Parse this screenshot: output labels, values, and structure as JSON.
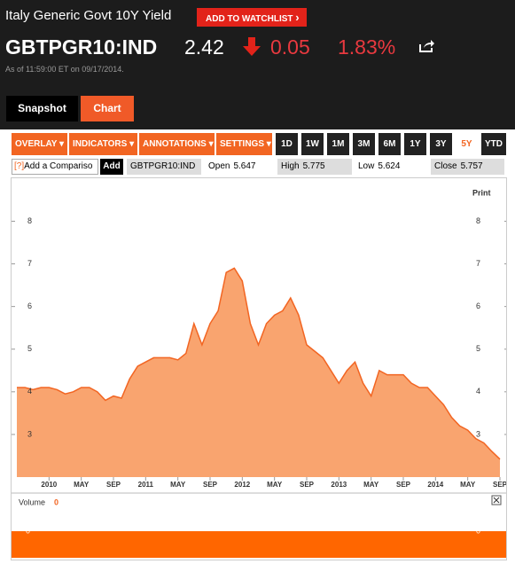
{
  "header": {
    "title": "Italy Generic Govt 10Y Yield",
    "watchlist_button": "ADD TO WATCHLIST",
    "ticker": "GBTPGR10:IND",
    "price": 2.42,
    "change": 0.05,
    "change_pct": "1.83%",
    "as_of": "As of 11:59:00 ET on 09/17/2014."
  },
  "tabs": [
    "Snapshot",
    "Chart"
  ],
  "toolbar": {
    "menus": [
      "OVERLAY",
      "INDICATORS",
      "ANNOTATIONS",
      "SETTINGS"
    ],
    "ranges": [
      "1D",
      "1W",
      "1M",
      "3M",
      "6M",
      "1Y",
      "3Y",
      "5Y",
      "YTD"
    ],
    "active_range": "5Y"
  },
  "quote_bar": {
    "compare_help": "[?]",
    "compare_placeholder": "Add a Compariso",
    "add_button": "Add",
    "symbol": "GBTPGR10:IND",
    "stats": [
      {
        "label": "Open",
        "value": 5.647
      },
      {
        "label": "High",
        "value": 5.775
      },
      {
        "label": "Low",
        "value": 5.624
      },
      {
        "label": "Close",
        "value": 5.757
      }
    ]
  },
  "print": "Print",
  "chart_data": {
    "type": "area",
    "color": "#f26522",
    "fill": "#f9a46f",
    "x": [
      "2009-09",
      "2009-10",
      "2009-11",
      "2009-12",
      "2010-01",
      "2010-02",
      "2010-03",
      "2010-04",
      "2010-05",
      "2010-06",
      "2010-07",
      "2010-08",
      "2010-09",
      "2010-10",
      "2010-11",
      "2010-12",
      "2011-01",
      "2011-02",
      "2011-03",
      "2011-04",
      "2011-05",
      "2011-06",
      "2011-07",
      "2011-08",
      "2011-09",
      "2011-10",
      "2011-11",
      "2011-12",
      "2012-01",
      "2012-02",
      "2012-03",
      "2012-04",
      "2012-05",
      "2012-06",
      "2012-07",
      "2012-08",
      "2012-09",
      "2012-10",
      "2012-11",
      "2012-12",
      "2013-01",
      "2013-02",
      "2013-03",
      "2013-04",
      "2013-05",
      "2013-06",
      "2013-07",
      "2013-08",
      "2013-09",
      "2013-10",
      "2013-11",
      "2013-12",
      "2014-01",
      "2014-02",
      "2014-03",
      "2014-04",
      "2014-05",
      "2014-06",
      "2014-07",
      "2014-08",
      "2014-09"
    ],
    "values": [
      4.1,
      4.1,
      4.05,
      4.1,
      4.1,
      4.05,
      3.95,
      4.0,
      4.1,
      4.1,
      4.0,
      3.8,
      3.9,
      3.85,
      4.3,
      4.6,
      4.7,
      4.8,
      4.8,
      4.8,
      4.75,
      4.9,
      5.6,
      5.1,
      5.6,
      5.9,
      6.8,
      6.9,
      6.6,
      5.6,
      5.1,
      5.6,
      5.8,
      5.9,
      6.2,
      5.8,
      5.1,
      4.95,
      4.8,
      4.5,
      4.2,
      4.5,
      4.7,
      4.2,
      3.9,
      4.5,
      4.4,
      4.4,
      4.4,
      4.2,
      4.1,
      4.1,
      3.9,
      3.7,
      3.4,
      3.2,
      3.1,
      2.9,
      2.8,
      2.6,
      2.42
    ],
    "xlim": [
      "2009-09",
      "2014-09"
    ],
    "xticks": [
      {
        "value": "2010-01",
        "label": "2010"
      },
      {
        "value": "2010-05",
        "label": "MAY"
      },
      {
        "value": "2010-09",
        "label": "SEP"
      },
      {
        "value": "2011-01",
        "label": "2011"
      },
      {
        "value": "2011-05",
        "label": "MAY"
      },
      {
        "value": "2011-09",
        "label": "SEP"
      },
      {
        "value": "2012-01",
        "label": "2012"
      },
      {
        "value": "2012-05",
        "label": "MAY"
      },
      {
        "value": "2012-09",
        "label": "SEP"
      },
      {
        "value": "2013-01",
        "label": "2013"
      },
      {
        "value": "2013-05",
        "label": "MAY"
      },
      {
        "value": "2013-09",
        "label": "SEP"
      },
      {
        "value": "2014-01",
        "label": "2014"
      },
      {
        "value": "2014-05",
        "label": "MAY"
      },
      {
        "value": "2014-09",
        "label": "SEP"
      }
    ],
    "ylim": [
      2,
      8.8
    ],
    "yticks": [
      3,
      4,
      5,
      6,
      7,
      8
    ],
    "volume": {
      "label": "Volume",
      "value": 0,
      "yticks": [
        0
      ]
    }
  }
}
